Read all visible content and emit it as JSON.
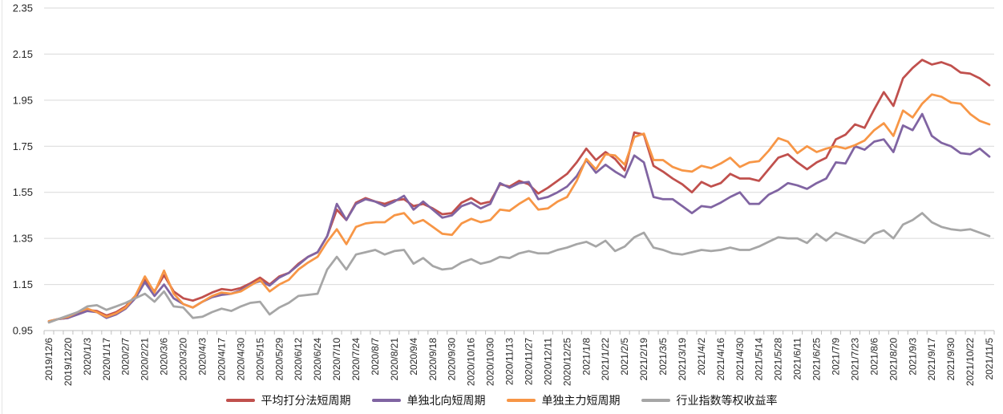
{
  "chart_data": {
    "type": "line",
    "title": "",
    "xlabel": "",
    "ylabel": "",
    "ylim": [
      0.95,
      2.35
    ],
    "y_tick_step": 0.2,
    "y_ticks": [
      "0.95",
      "1.15",
      "1.35",
      "1.55",
      "1.75",
      "1.95",
      "2.15",
      "2.35"
    ],
    "grid": "horizontal",
    "legend_position": "bottom",
    "x_label_every": 2,
    "axis_color": "#BFBFBF",
    "gridline_color": "#D9D9D9",
    "label_color": "#262626",
    "x_categories": [
      "2019/12/6",
      "2019/12/13",
      "2019/12/20",
      "2019/12/27",
      "2020/1/3",
      "2020/1/10",
      "2020/1/17",
      "2020/1/23",
      "2020/2/7",
      "2020/2/14",
      "2020/2/21",
      "2020/2/28",
      "2020/3/6",
      "2020/3/13",
      "2020/3/20",
      "2020/3/27",
      "2020/4/3",
      "2020/4/10",
      "2020/4/17",
      "2020/4/24",
      "2020/4/30",
      "2020/5/8",
      "2020/5/15",
      "2020/5/22",
      "2020/5/29",
      "2020/6/5",
      "2020/6/12",
      "2020/6/19",
      "2020/6/24",
      "2020/7/3",
      "2020/7/10",
      "2020/7/17",
      "2020/7/24",
      "2020/7/31",
      "2020/8/7",
      "2020/8/14",
      "2020/8/21",
      "2020/8/28",
      "2020/9/4",
      "2020/9/11",
      "2020/9/18",
      "2020/9/25",
      "2020/9/30",
      "2020/10/9",
      "2020/10/16",
      "2020/10/23",
      "2020/10/30",
      "2020/11/6",
      "2020/11/13",
      "2020/11/20",
      "2020/11/27",
      "2020/12/4",
      "2020/12/11",
      "2020/12/18",
      "2020/12/25",
      "2020/12/31",
      "2021/1/8",
      "2021/1/15",
      "2021/1/22",
      "2021/1/29",
      "2021/2/5",
      "2021/2/10",
      "2021/2/19",
      "2021/2/26",
      "2021/3/5",
      "2021/3/12",
      "2021/3/19",
      "2021/3/26",
      "2021/4/2",
      "2021/4/9",
      "2021/4/16",
      "2021/4/23",
      "2021/4/30",
      "2021/5/7",
      "2021/5/14",
      "2021/5/21",
      "2021/5/28",
      "2021/6/4",
      "2021/6/11",
      "2021/6/18",
      "2021/6/25",
      "2021/7/2",
      "2021/7/9",
      "2021/7/16",
      "2021/7/23",
      "2021/7/30",
      "2021/8/6",
      "2021/8/13",
      "2021/8/20",
      "2021/8/27",
      "2021/9/3",
      "2021/9/10",
      "2021/9/17",
      "2021/9/24",
      "2021/9/30",
      "2021/10/15",
      "2021/10/22",
      "2021/10/29",
      "2021/11/5"
    ],
    "series": [
      {
        "name": "平均打分法短周期",
        "color": "#C0504D",
        "values": [
          0.99,
          1.0,
          1.005,
          1.025,
          1.04,
          1.035,
          1.015,
          1.03,
          1.055,
          1.1,
          1.17,
          1.12,
          1.19,
          1.12,
          1.09,
          1.08,
          1.095,
          1.115,
          1.13,
          1.125,
          1.135,
          1.155,
          1.18,
          1.15,
          1.185,
          1.2,
          1.24,
          1.27,
          1.29,
          1.36,
          1.475,
          1.43,
          1.505,
          1.525,
          1.51,
          1.5,
          1.515,
          1.52,
          1.49,
          1.5,
          1.48,
          1.455,
          1.46,
          1.505,
          1.525,
          1.5,
          1.51,
          1.585,
          1.575,
          1.6,
          1.585,
          1.545,
          1.57,
          1.6,
          1.63,
          1.68,
          1.74,
          1.69,
          1.725,
          1.695,
          1.645,
          1.81,
          1.8,
          1.665,
          1.64,
          1.61,
          1.585,
          1.55,
          1.595,
          1.575,
          1.59,
          1.63,
          1.61,
          1.61,
          1.6,
          1.65,
          1.7,
          1.715,
          1.68,
          1.65,
          1.68,
          1.7,
          1.78,
          1.8,
          1.845,
          1.83,
          1.91,
          1.985,
          1.925,
          2.045,
          2.09,
          2.125,
          2.105,
          2.115,
          2.1,
          2.07,
          2.065,
          2.045,
          2.015
        ]
      },
      {
        "name": "单独北向短周期",
        "color": "#8064A2",
        "values": [
          0.99,
          1.0,
          1.005,
          1.02,
          1.035,
          1.03,
          1.005,
          1.02,
          1.045,
          1.09,
          1.16,
          1.1,
          1.15,
          1.09,
          1.065,
          1.05,
          1.075,
          1.095,
          1.105,
          1.11,
          1.125,
          1.15,
          1.165,
          1.145,
          1.18,
          1.2,
          1.235,
          1.27,
          1.29,
          1.36,
          1.5,
          1.43,
          1.5,
          1.52,
          1.51,
          1.49,
          1.51,
          1.535,
          1.475,
          1.51,
          1.475,
          1.44,
          1.45,
          1.49,
          1.505,
          1.48,
          1.5,
          1.59,
          1.57,
          1.59,
          1.595,
          1.52,
          1.53,
          1.55,
          1.575,
          1.62,
          1.69,
          1.635,
          1.67,
          1.64,
          1.615,
          1.71,
          1.68,
          1.53,
          1.52,
          1.52,
          1.49,
          1.46,
          1.49,
          1.485,
          1.505,
          1.53,
          1.55,
          1.5,
          1.5,
          1.54,
          1.56,
          1.59,
          1.58,
          1.565,
          1.59,
          1.61,
          1.68,
          1.675,
          1.75,
          1.735,
          1.77,
          1.78,
          1.725,
          1.84,
          1.82,
          1.89,
          1.795,
          1.765,
          1.75,
          1.72,
          1.715,
          1.74,
          1.705
        ]
      },
      {
        "name": "单独主力短周期",
        "color": "#F79646",
        "values": [
          0.99,
          1.0,
          1.01,
          1.03,
          1.045,
          1.03,
          1.01,
          1.025,
          1.05,
          1.1,
          1.185,
          1.115,
          1.21,
          1.11,
          1.065,
          1.05,
          1.075,
          1.1,
          1.115,
          1.11,
          1.12,
          1.145,
          1.17,
          1.12,
          1.15,
          1.17,
          1.215,
          1.245,
          1.27,
          1.335,
          1.39,
          1.325,
          1.4,
          1.415,
          1.42,
          1.42,
          1.45,
          1.46,
          1.415,
          1.43,
          1.4,
          1.37,
          1.365,
          1.415,
          1.435,
          1.42,
          1.43,
          1.475,
          1.47,
          1.5,
          1.525,
          1.475,
          1.48,
          1.51,
          1.53,
          1.6,
          1.695,
          1.65,
          1.715,
          1.71,
          1.67,
          1.79,
          1.805,
          1.69,
          1.69,
          1.66,
          1.645,
          1.64,
          1.665,
          1.655,
          1.675,
          1.7,
          1.66,
          1.68,
          1.685,
          1.73,
          1.785,
          1.77,
          1.72,
          1.75,
          1.725,
          1.74,
          1.75,
          1.74,
          1.755,
          1.775,
          1.82,
          1.85,
          1.795,
          1.905,
          1.875,
          1.935,
          1.975,
          1.965,
          1.94,
          1.935,
          1.89,
          1.86,
          1.845
        ]
      },
      {
        "name": "行业指数等权收益率",
        "color": "#A6A6A6",
        "values": [
          0.985,
          1.0,
          1.015,
          1.03,
          1.055,
          1.06,
          1.04,
          1.055,
          1.07,
          1.09,
          1.11,
          1.075,
          1.12,
          1.055,
          1.05,
          1.005,
          1.01,
          1.03,
          1.045,
          1.035,
          1.055,
          1.07,
          1.075,
          1.02,
          1.05,
          1.07,
          1.1,
          1.105,
          1.11,
          1.215,
          1.27,
          1.215,
          1.28,
          1.29,
          1.3,
          1.28,
          1.295,
          1.3,
          1.24,
          1.265,
          1.23,
          1.215,
          1.22,
          1.245,
          1.26,
          1.24,
          1.25,
          1.27,
          1.265,
          1.285,
          1.295,
          1.285,
          1.285,
          1.3,
          1.31,
          1.325,
          1.335,
          1.315,
          1.34,
          1.295,
          1.315,
          1.355,
          1.375,
          1.31,
          1.3,
          1.285,
          1.28,
          1.29,
          1.3,
          1.295,
          1.3,
          1.31,
          1.3,
          1.3,
          1.315,
          1.335,
          1.355,
          1.35,
          1.35,
          1.33,
          1.37,
          1.34,
          1.375,
          1.36,
          1.345,
          1.33,
          1.37,
          1.385,
          1.35,
          1.41,
          1.43,
          1.46,
          1.42,
          1.4,
          1.39,
          1.385,
          1.39,
          1.375,
          1.36
        ]
      }
    ]
  }
}
